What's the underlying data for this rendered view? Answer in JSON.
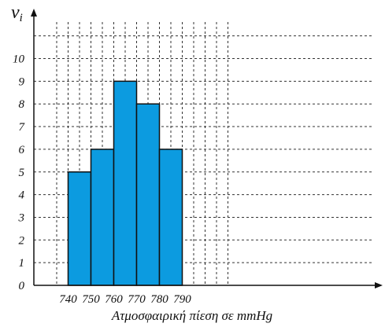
{
  "chart_data": {
    "type": "bar",
    "title": "",
    "xlabel": "Ατμοσφαιρική πίεση σε mmHg",
    "ylabel": "ν",
    "ylabel_subscript": "i",
    "bin_edges": [
      740,
      750,
      760,
      770,
      780,
      790
    ],
    "values": [
      5,
      6,
      9,
      8,
      6
    ],
    "x_tick_labels": [
      "740",
      "750",
      "760",
      "770",
      "780",
      "790"
    ],
    "y_tick_labels": [
      "0",
      "1",
      "2",
      "3",
      "4",
      "5",
      "6",
      "7",
      "8",
      "9",
      "10"
    ],
    "xlim": [
      730,
      810
    ],
    "ylim": [
      0,
      11.5
    ],
    "grid": true,
    "legend": "none",
    "colors": {
      "bar_fill": "#0c9be0",
      "bar_stroke": "#111111",
      "grid": "#333333",
      "axis": "#111111"
    }
  }
}
